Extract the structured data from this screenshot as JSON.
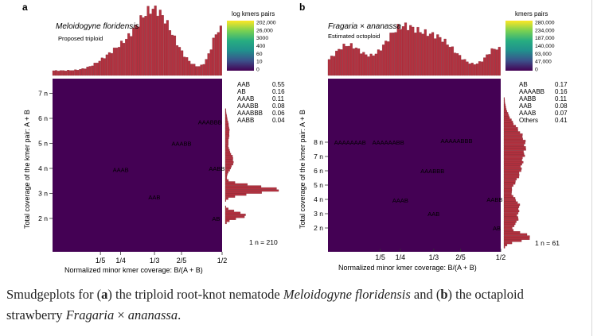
{
  "chart_data": [
    {
      "type": "heatmap",
      "panel_label": "a",
      "species": "Meloidogyne floridensis",
      "subtitle": "Proposed triploid",
      "xlabel": "Normalized minor kmer coverage: B/(A + B)",
      "ylabel": "Total coverage of the kmer pair: A + B",
      "xticks": [
        "1/5",
        "1/4",
        "1/3",
        "2/5",
        "1/2"
      ],
      "yticks": [
        "2 n",
        "3 n",
        "4 n",
        "5 n",
        "6 n",
        "7 n"
      ],
      "colorbar_title": "log kmers pairs",
      "colorbar_ticks": [
        "202,000",
        "26,000",
        "3000",
        "400",
        "60",
        "10",
        "0"
      ],
      "smudges": [
        "AB",
        "AAB",
        "AAAB",
        "AAABB",
        "AABB",
        "AAABBB"
      ],
      "legend": [
        {
          "label": "AAB",
          "value": "0.55"
        },
        {
          "label": "AB",
          "value": "0.16"
        },
        {
          "label": "AAAB",
          "value": "0.11"
        },
        {
          "label": "AAABB",
          "value": "0.08"
        },
        {
          "label": "AAABBB",
          "value": "0.06"
        },
        {
          "label": "AABB",
          "value": "0.04"
        }
      ],
      "n_estimate": "1 n = 210"
    },
    {
      "type": "heatmap",
      "panel_label": "b",
      "species": "Fragaria × ananassa",
      "subtitle": "Estimated octoploid",
      "xlabel": "Normalized minor kmer coverage: B/(A + B)",
      "ylabel": "Total coverage of the kmer pair: A + B",
      "xticks": [
        "1/5",
        "1/4",
        "1/3",
        "2/5",
        "1/2"
      ],
      "yticks": [
        "2 n",
        "3 n",
        "4 n",
        "5 n",
        "6 n",
        "7 n",
        "8 n"
      ],
      "colorbar_title": "kmers pairs",
      "colorbar_ticks": [
        "280,000",
        "234,000",
        "187,000",
        "140,000",
        "93,000",
        "47,000",
        "0"
      ],
      "smudges": [
        "AB",
        "AAB",
        "AAAB",
        "AABB",
        "AAABBB",
        "AAAAAABB",
        "AAAAAAAB",
        "AAAAABBB"
      ],
      "legend": [
        {
          "label": "AB",
          "value": "0.17"
        },
        {
          "label": "AAAABB",
          "value": "0.16"
        },
        {
          "label": "AABB",
          "value": "0.11"
        },
        {
          "label": "AAB",
          "value": "0.08"
        },
        {
          "label": "AAAB",
          "value": "0.07"
        },
        {
          "label": "Others",
          "value": "0.41"
        }
      ],
      "n_estimate": "1 n = 61"
    }
  ],
  "caption": {
    "t1": "Smudgeplots for (",
    "t2": "a",
    "t3": ") the triploid root-knot nematode ",
    "t4": "Meloidogyne floridensis",
    "t5": " and (",
    "t6": "b",
    "t7": ") the octaploid strawberry ",
    "t8": "Fragaria",
    "t9": " × ",
    "t10": "ananassa",
    "t11": "."
  },
  "colors": {
    "histogram": "#b3313f",
    "background": "#440154",
    "high": "#f8e620"
  }
}
